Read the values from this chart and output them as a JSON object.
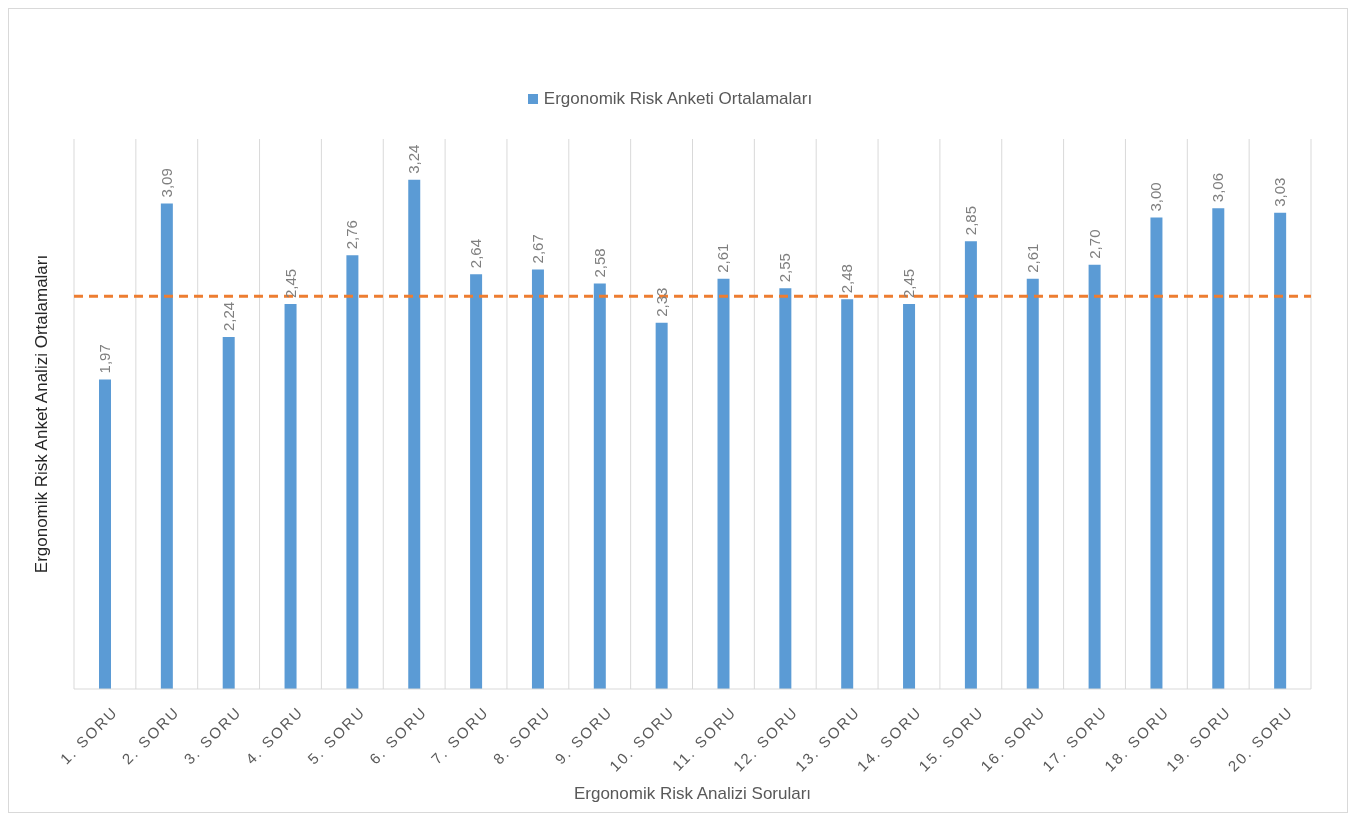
{
  "chart_data": {
    "type": "bar",
    "xlabel": "Ergonomik Risk Analizi Soruları",
    "ylabel": "Ergonomik Risk  Anket Analizi Ortalamaları",
    "categories": [
      "1. SORU",
      "2. SORU",
      "3. SORU",
      "4. SORU",
      "5. SORU",
      "6. SORU",
      "7. SORU",
      "8. SORU",
      "9. SORU",
      "10. SORU",
      "11. SORU",
      "12. SORU",
      "13. SORU",
      "14. SORU",
      "15. SORU",
      "16. SORU",
      "17. SORU",
      "18. SORU",
      "19. SORU",
      "20. SORU"
    ],
    "series": [
      {
        "name": "Ergonomik Risk Anketi Ortalamaları",
        "color": "#5b9bd5",
        "values": [
          1.97,
          3.09,
          2.24,
          2.45,
          2.76,
          3.24,
          2.64,
          2.67,
          2.58,
          2.33,
          2.61,
          2.55,
          2.48,
          2.45,
          2.85,
          2.61,
          2.7,
          3.0,
          3.06,
          3.03
        ],
        "value_labels": [
          "1,97",
          "3,09",
          "2,24",
          "2,45",
          "2,76",
          "3,24",
          "2,64",
          "2,67",
          "2,58",
          "2,33",
          "2,61",
          "2,55",
          "2,48",
          "2,45",
          "2,85",
          "2,61",
          "2,70",
          "3,00",
          "3,06",
          "3,03"
        ]
      }
    ],
    "ylim": [
      0,
      3.5
    ],
    "tick_labels": "x",
    "grid": "x",
    "legend": "top",
    "ref_lines": [
      {
        "axis": "y",
        "value": 2.5,
        "color": "#ed7d31",
        "line_style": "dashed"
      }
    ]
  }
}
